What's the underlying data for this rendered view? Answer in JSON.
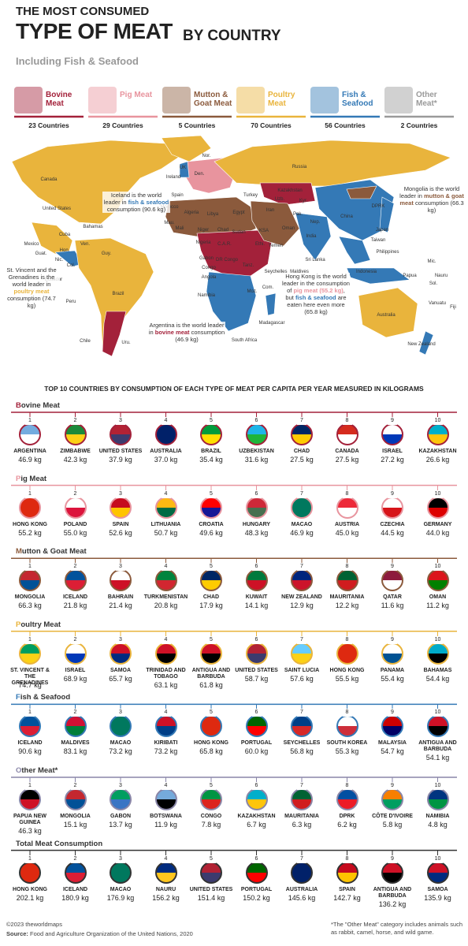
{
  "header": {
    "line1": "THE MOST CONSUMED",
    "line2a": "TYPE OF MEAT",
    "line2b": "BY COUNTRY",
    "subtitle": "Including Fish & Seafood"
  },
  "legend": [
    {
      "name": "Bovine Meat",
      "count": "23 Countries",
      "color": "#a3213a"
    },
    {
      "name": "Pig Meat",
      "count": "29 Countries",
      "color": "#e8949e"
    },
    {
      "name": "Mutton & Goat Meat",
      "count": "5 Countries",
      "color": "#8b5a3c"
    },
    {
      "name": "Poultry Meat",
      "count": "70 Countries",
      "color": "#e9b43c"
    },
    {
      "name": "Fish & Seafood",
      "count": "56 Countries",
      "color": "#3479b6"
    },
    {
      "name": "Other Meat*",
      "count": "2 Countries",
      "color": "#9a9a9a"
    }
  ],
  "map": {
    "labels": [
      "Canada",
      "United States",
      "Mexico",
      "Cuba",
      "Bahamas",
      "Guat.",
      "Hon.",
      "Nic.",
      "Col.",
      "Ven.",
      "Guy.",
      "Ecuador",
      "Peru",
      "Brazil",
      "Chile",
      "Uru.",
      "Nor.",
      "UK",
      "Ireland",
      "Den.",
      "Spain",
      "Morocco",
      "Algeria",
      "Mali",
      "Mau.",
      "Niger",
      "Chad",
      "Sudan",
      "Egypt",
      "Libya",
      "Nigeria",
      "C.A.R.",
      "Ethi.",
      "DR Congo",
      "Congo",
      "Gabon",
      "Angola",
      "Tanz.",
      "Namibia",
      "South Africa",
      "Madagascar",
      "Seychelles",
      "Com.",
      "Moz.",
      "Russia",
      "Kazakhstan",
      "Uzb.",
      "Turkey",
      "Iran",
      "KSA",
      "Oman",
      "Yemen",
      "Pak.",
      "India",
      "Nep.",
      "Sri Lanka",
      "Maldives",
      "China",
      "DPRK",
      "Japan",
      "Taiwan",
      "Philippines",
      "Indonesia",
      "Australia",
      "New Zealand",
      "Papua",
      "Mic.",
      "Nauru",
      "Sol.",
      "Vanuatu",
      "Fiji",
      "Kyr."
    ],
    "annotations": [
      {
        "parts": [
          "Iceland is the world leader in ",
          "fish & seafood",
          " consumption (90.6 kg)"
        ]
      },
      {
        "parts": [
          "Mongolia is the world leader in ",
          "mutton & goat meat",
          " consumption (66.3 kg)"
        ]
      },
      {
        "parts": [
          "St. Vincent and the Grenadines is the world leader in ",
          "poultry meat",
          " consumption (74.7 kg)"
        ]
      },
      {
        "parts": [
          "Argentina is the world leader in ",
          "bovine meat",
          " consumption (46.9 kg)"
        ]
      },
      {
        "parts": [
          "Hong Kong is the world leader in the consumption of ",
          "pig meat (55.2 kg)",
          ", but ",
          "fish & seafood",
          " are eaten here even more (65.8 kg)"
        ]
      }
    ]
  },
  "rankings": {
    "title": "TOP 10 COUNTRIES BY CONSUMPTION OF EACH TYPE OF MEAT PER CAPITA PER YEAR MEASURED IN KILOGRAMS",
    "groups": [
      {
        "title": "Bovine Meat",
        "items": [
          [
            1,
            "ARGENTINA",
            "46.9 kg"
          ],
          [
            2,
            "ZIMBABWE",
            "42.3 kg"
          ],
          [
            3,
            "UNITED STATES",
            "37.9 kg"
          ],
          [
            4,
            "AUSTRALIA",
            "37.0 kg"
          ],
          [
            5,
            "BRAZIL",
            "35.4 kg"
          ],
          [
            6,
            "UZBEKISTAN",
            "31.6 kg"
          ],
          [
            7,
            "CHAD",
            "27.5 kg"
          ],
          [
            8,
            "CANADA",
            "27.5 kg"
          ],
          [
            9,
            "ISRAEL",
            "27.2 kg"
          ],
          [
            10,
            "KAZAKHSTAN",
            "26.6 kg"
          ]
        ]
      },
      {
        "title": "Pig Meat",
        "items": [
          [
            1,
            "HONG KONG",
            "55.2 kg"
          ],
          [
            2,
            "POLAND",
            "55.0 kg"
          ],
          [
            3,
            "SPAIN",
            "52.6 kg"
          ],
          [
            4,
            "LITHUANIA",
            "50.7 kg"
          ],
          [
            5,
            "CROATIA",
            "49.6 kg"
          ],
          [
            6,
            "HUNGARY",
            "48.3 kg"
          ],
          [
            7,
            "MACAO",
            "46.9 kg"
          ],
          [
            8,
            "AUSTRIA",
            "45.0 kg"
          ],
          [
            9,
            "CZECHIA",
            "44.5 kg"
          ],
          [
            10,
            "GERMANY",
            "44.0 kg"
          ]
        ]
      },
      {
        "title": "Mutton & Goat Meat",
        "items": [
          [
            1,
            "MONGOLIA",
            "66.3 kg"
          ],
          [
            2,
            "ICELAND",
            "21.8 kg"
          ],
          [
            3,
            "BAHRAIN",
            "21.4 kg"
          ],
          [
            4,
            "TURKMENISTAN",
            "20.8 kg"
          ],
          [
            5,
            "CHAD",
            "17.9 kg"
          ],
          [
            6,
            "KUWAIT",
            "14.1 kg"
          ],
          [
            7,
            "NEW ZEALAND",
            "12.9 kg"
          ],
          [
            8,
            "MAURITANIA",
            "12.2 kg"
          ],
          [
            9,
            "QATAR",
            "11.6 kg"
          ],
          [
            10,
            "OMAN",
            "11.2 kg"
          ]
        ]
      },
      {
        "title": "Poultry Meat",
        "items": [
          [
            1,
            "ST. VINCENT & THE GRENADINES",
            "74.7 kg"
          ],
          [
            2,
            "ISRAEL",
            "68.9 kg"
          ],
          [
            3,
            "SAMOA",
            "65.7 kg"
          ],
          [
            4,
            "TRINIDAD AND TOBAGO",
            "63.1 kg"
          ],
          [
            5,
            "ANTIGUA AND BARBUDA",
            "61.8 kg"
          ],
          [
            6,
            "UNITED STATES",
            "58.7 kg"
          ],
          [
            7,
            "SAINT LUCIA",
            "57.6 kg"
          ],
          [
            8,
            "HONG KONG",
            "55.5 kg"
          ],
          [
            9,
            "PANAMA",
            "55.4 kg"
          ],
          [
            10,
            "BAHAMAS",
            "54.4 kg"
          ]
        ]
      },
      {
        "title": "Fish & Seafood",
        "items": [
          [
            1,
            "ICELAND",
            "90.6 kg"
          ],
          [
            2,
            "MALDIVES",
            "83.1 kg"
          ],
          [
            3,
            "MACAO",
            "73.2 kg"
          ],
          [
            4,
            "KIRIBATI",
            "73.2 kg"
          ],
          [
            5,
            "HONG KONG",
            "65.8 kg"
          ],
          [
            6,
            "PORTUGAL",
            "60.0 kg"
          ],
          [
            7,
            "SEYCHELLES",
            "56.8 kg"
          ],
          [
            8,
            "SOUTH KOREA",
            "55.3 kg"
          ],
          [
            9,
            "MALAYSIA",
            "54.7 kg"
          ],
          [
            10,
            "ANTIGUA AND BARBUDA",
            "54.1 kg"
          ]
        ]
      },
      {
        "title": "Other Meat*",
        "items": [
          [
            1,
            "PAPUA NEW GUINEA",
            "46.3 kg"
          ],
          [
            2,
            "MONGOLIA",
            "15.1 kg"
          ],
          [
            3,
            "GABON",
            "13.7 kg"
          ],
          [
            4,
            "BOTSWANA",
            "11.9 kg"
          ],
          [
            5,
            "CONGO",
            "7.8 kg"
          ],
          [
            6,
            "KAZAKHSTAN",
            "6.7 kg"
          ],
          [
            7,
            "MAURITANIA",
            "6.3 kg"
          ],
          [
            8,
            "DPRK",
            "6.2 kg"
          ],
          [
            9,
            "CÔTE D'IVOIRE",
            "5.8 kg"
          ],
          [
            10,
            "NAMIBIA",
            "4.8 kg"
          ]
        ]
      },
      {
        "title": "Total Meat Consumption",
        "items": [
          [
            1,
            "HONG KONG",
            "202.1 kg"
          ],
          [
            2,
            "ICELAND",
            "180.9 kg"
          ],
          [
            3,
            "MACAO",
            "176.9 kg"
          ],
          [
            4,
            "NAURU",
            "156.2 kg"
          ],
          [
            5,
            "UNITED STATES",
            "151.4 kg"
          ],
          [
            6,
            "PORTUGAL",
            "150.2 kg"
          ],
          [
            7,
            "AUSTRALIA",
            "145.6 kg"
          ],
          [
            8,
            "SPAIN",
            "142.7 kg"
          ],
          [
            9,
            "ANTIGUA AND BARBUDA",
            "136.2 kg"
          ],
          [
            10,
            "SAMOA",
            "135.9 kg"
          ]
        ]
      }
    ]
  },
  "footer": {
    "copyright": "©2023 theworldmaps",
    "source_label": "Source:",
    "source": "Food and Agriculture Organization of the United Nations, 2020",
    "note": "*The \"Other Meat\" category includes animals such as rabbit, camel, horse, and wild game."
  }
}
